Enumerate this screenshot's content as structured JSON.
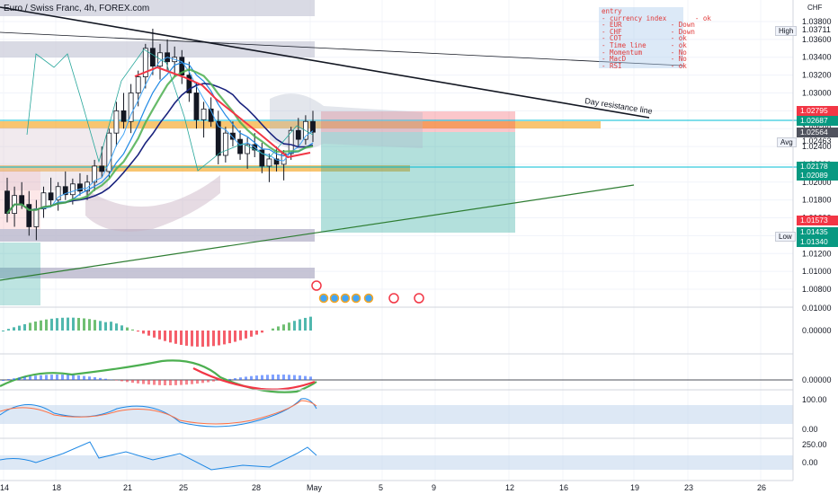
{
  "header": {
    "title": "Euro / Swiss Franc, 4h, FOREX.com",
    "currency": "CHF"
  },
  "checklist": {
    "rows": [
      "entry",
      "- currency index       - ok",
      "- EUR            - Down",
      "- CHF            - Down",
      "- COT            - ok",
      "- Time line      - ok",
      "- Momentum       - No",
      "- MacD           - No",
      "- RSI            - ok"
    ]
  },
  "annotations": {
    "resistance": "Day resistance line"
  },
  "side_labels": {
    "high": "High",
    "avg": "Avg",
    "low": "Low"
  },
  "price_tags": [
    {
      "value": "1.02795",
      "color": "#f23645"
    },
    {
      "value": "1.02687",
      "color": "#089981"
    },
    {
      "value": "1.02564",
      "color": "#50535e"
    },
    {
      "value": "1.02178",
      "color": "#089981"
    },
    {
      "value": "1.02089",
      "color": "#089981"
    },
    {
      "value": "1.01573",
      "color": "#f23645"
    },
    {
      "value": "1.01435",
      "color": "#089981"
    },
    {
      "value": "1.01340",
      "color": "#089981"
    }
  ],
  "chart_data": {
    "type": "line",
    "title": "Euro / Swiss Franc, 4h, FOREX.com",
    "price_axis": {
      "ticks": [
        "1.03800",
        "1.03600",
        "1.03400",
        "1.03200",
        "1.03000",
        "1.02800",
        "1.02600",
        "1.02400",
        "1.02200",
        "1.02000",
        "1.01800",
        "1.01600",
        "1.01400",
        "1.01200",
        "1.01000",
        "1.00800"
      ],
      "high": "1.03711",
      "avg": "1.02463",
      "ylim": [
        1.0065,
        1.0395
      ]
    },
    "time_axis": {
      "ticks": [
        "14",
        "18",
        "21",
        "25",
        "28",
        "May",
        "5",
        "9",
        "12",
        "16",
        "19",
        "23",
        "26"
      ]
    },
    "indicator_axes": [
      {
        "name": "macd",
        "ticks": [
          "0.01000",
          "0.00000"
        ]
      },
      {
        "name": "momentum",
        "ticks": [
          "0.00000"
        ]
      },
      {
        "name": "rsi",
        "ticks": [
          "100.00",
          "0.00"
        ]
      },
      {
        "name": "cci",
        "ticks": [
          "250.00",
          "0.00"
        ]
      }
    ],
    "candles": [
      [
        1.019,
        1.0205,
        1.0155,
        1.0165
      ],
      [
        1.0165,
        1.0195,
        1.015,
        1.0185
      ],
      [
        1.0185,
        1.02,
        1.017,
        1.0175
      ],
      [
        1.0175,
        1.019,
        1.014,
        1.015
      ],
      [
        1.015,
        1.018,
        1.0135,
        1.017
      ],
      [
        1.017,
        1.0195,
        1.016,
        1.0188
      ],
      [
        1.0188,
        1.0205,
        1.0172,
        1.018
      ],
      [
        1.018,
        1.02,
        1.0168,
        1.0195
      ],
      [
        1.0195,
        1.0212,
        1.018,
        1.0186
      ],
      [
        1.0186,
        1.0204,
        1.0175,
        1.0198
      ],
      [
        1.0198,
        1.021,
        1.0185,
        1.019
      ],
      [
        1.019,
        1.0208,
        1.018,
        1.02
      ],
      [
        1.02,
        1.0225,
        1.019,
        1.0218
      ],
      [
        1.0218,
        1.024,
        1.0205,
        1.0212
      ],
      [
        1.0212,
        1.026,
        1.0205,
        1.0255
      ],
      [
        1.0255,
        1.029,
        1.024,
        1.028
      ],
      [
        1.028,
        1.03,
        1.026,
        1.0268
      ],
      [
        1.0268,
        1.031,
        1.0255,
        1.03
      ],
      [
        1.03,
        1.0325,
        1.0285,
        1.0318
      ],
      [
        1.0318,
        1.0355,
        1.0305,
        1.035
      ],
      [
        1.035,
        1.0372,
        1.032,
        1.033
      ],
      [
        1.033,
        1.0355,
        1.0315,
        1.0345
      ],
      [
        1.0345,
        1.036,
        1.0325,
        1.0335
      ],
      [
        1.0335,
        1.0352,
        1.0318,
        1.034
      ],
      [
        1.034,
        1.0348,
        1.031,
        1.032
      ],
      [
        1.032,
        1.0335,
        1.029,
        1.03
      ],
      [
        1.03,
        1.0312,
        1.026,
        1.027
      ],
      [
        1.027,
        1.029,
        1.025,
        1.0282
      ],
      [
        1.0282,
        1.0295,
        1.0262,
        1.0268
      ],
      [
        1.0268,
        1.028,
        1.022,
        1.023
      ],
      [
        1.023,
        1.0262,
        1.0222,
        1.0255
      ],
      [
        1.0255,
        1.0268,
        1.024,
        1.0248
      ],
      [
        1.0248,
        1.0258,
        1.0225,
        1.0232
      ],
      [
        1.0232,
        1.025,
        1.0215,
        1.0242
      ],
      [
        1.0242,
        1.0255,
        1.0228,
        1.0236
      ],
      [
        1.0236,
        1.0244,
        1.021,
        1.0218
      ],
      [
        1.0218,
        1.0232,
        1.02,
        1.0226
      ],
      [
        1.0226,
        1.024,
        1.0212,
        1.022
      ],
      [
        1.022,
        1.0236,
        1.0202,
        1.0232
      ],
      [
        1.0232,
        1.0262,
        1.0225,
        1.0258
      ],
      [
        1.0258,
        1.0272,
        1.024,
        1.0248
      ],
      [
        1.0248,
        1.0275,
        1.0242,
        1.0268
      ],
      [
        1.0268,
        1.028,
        1.0245,
        1.0256
      ]
    ]
  }
}
